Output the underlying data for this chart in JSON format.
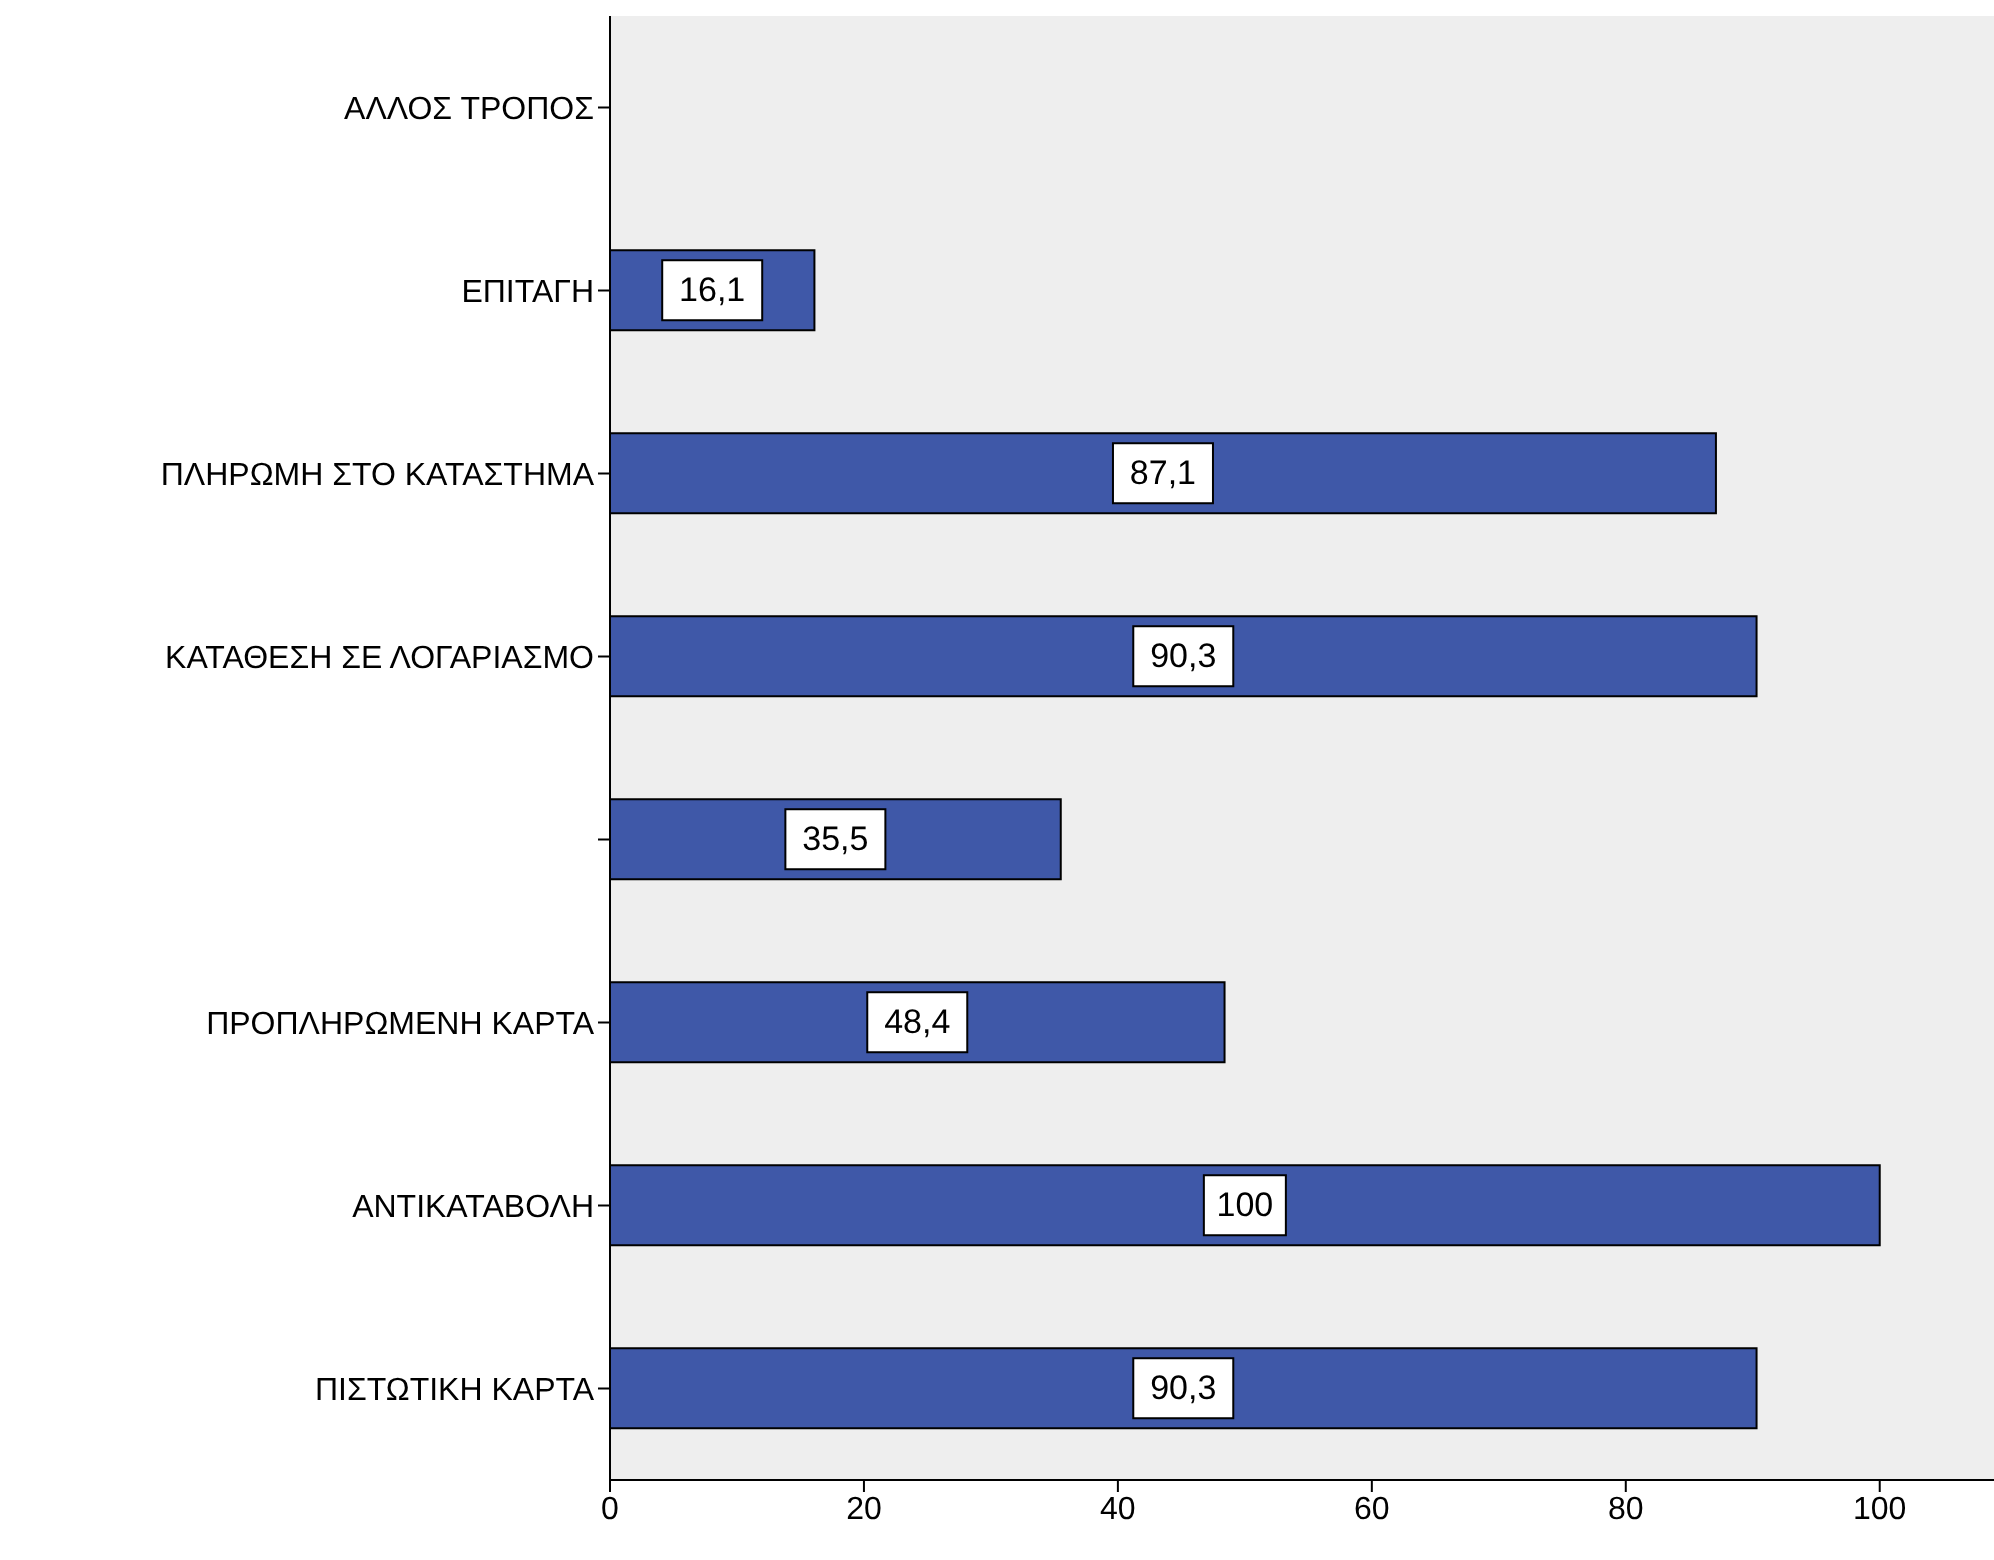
{
  "chart_data": {
    "type": "bar",
    "orientation": "horizontal",
    "categories": [
      "ΑΛΛΟΣ ΤΡΟΠΟΣ",
      "ΕΠΙΤΑΓΗ",
      "ΠΛΗΡΩΜΗ ΣΤΟ ΚΑΤΑΣΤΗΜΑ",
      "ΚΑΤΑΘΕΣΗ ΣΕ ΛΟΓΑΡΙΑΣΜΟ",
      null,
      "ΠΡΟΠΛΗΡΩΜΕΝΗ ΚΑΡΤΑ",
      "ΑΝΤΙΚΑΤΑΒΟΛΗ",
      "ΠΙΣΤΩΤΙΚΗ ΚΑΡΤΑ"
    ],
    "values": [
      null,
      16.1,
      87.1,
      90.3,
      35.5,
      48.4,
      100,
      90.3
    ],
    "value_labels": [
      null,
      "16,1",
      "87,1",
      "90,3",
      "35,5",
      "48,4",
      "100",
      "90,3"
    ],
    "color": "#3f58a8",
    "xlim": [
      0,
      109
    ],
    "xticks": [
      0,
      20,
      40,
      60,
      80,
      100
    ]
  }
}
